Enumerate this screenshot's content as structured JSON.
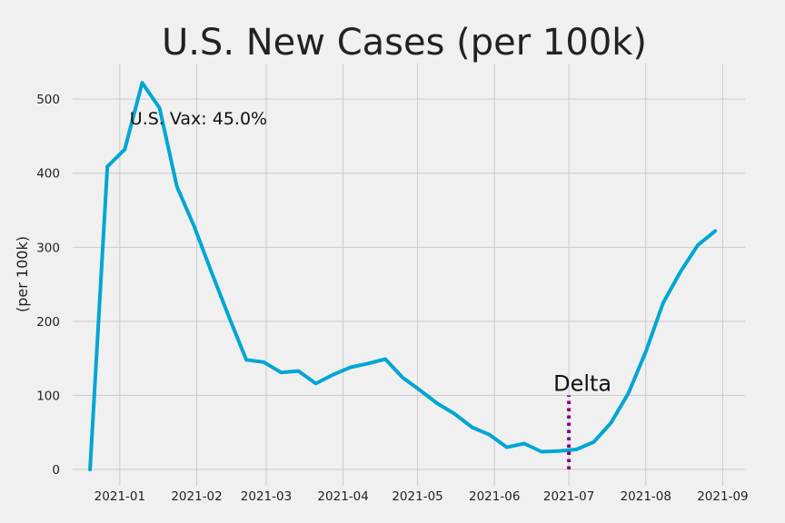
{
  "chart_data": {
    "type": "line",
    "title": "U.S. New Cases (per 100k)",
    "xlabel": "",
    "ylabel": "(per 100k)",
    "grid": true,
    "x_range": [
      "2020-12-13",
      "2021-09-10"
    ],
    "ylim": [
      -22,
      548
    ],
    "x_ticks": [
      "2021-01",
      "2021-02",
      "2021-03",
      "2021-04",
      "2021-05",
      "2021-06",
      "2021-07",
      "2021-08",
      "2021-09"
    ],
    "y_ticks": [
      0,
      100,
      200,
      300,
      400,
      500
    ],
    "series": [
      {
        "color": "#00a6d3",
        "points": [
          [
            "2020-12-20",
            0
          ],
          [
            "2020-12-27",
            409
          ],
          [
            "2021-01-03",
            432
          ],
          [
            "2021-01-10",
            522
          ],
          [
            "2021-01-17",
            488
          ],
          [
            "2021-01-24",
            382
          ],
          [
            "2021-01-31",
            328
          ],
          [
            "2021-02-07",
            266
          ],
          [
            "2021-02-14",
            206
          ],
          [
            "2021-02-21",
            148
          ],
          [
            "2021-02-28",
            145
          ],
          [
            "2021-03-07",
            131
          ],
          [
            "2021-03-14",
            133
          ],
          [
            "2021-03-21",
            116
          ],
          [
            "2021-03-28",
            128
          ],
          [
            "2021-04-04",
            138
          ],
          [
            "2021-04-11",
            143
          ],
          [
            "2021-04-18",
            149
          ],
          [
            "2021-04-25",
            124
          ],
          [
            "2021-05-02",
            107
          ],
          [
            "2021-05-09",
            89
          ],
          [
            "2021-05-16",
            75
          ],
          [
            "2021-05-23",
            57
          ],
          [
            "2021-05-30",
            47
          ],
          [
            "2021-06-06",
            30
          ],
          [
            "2021-06-13",
            35
          ],
          [
            "2021-06-20",
            24
          ],
          [
            "2021-06-27",
            25
          ],
          [
            "2021-07-04",
            27
          ],
          [
            "2021-07-11",
            37
          ],
          [
            "2021-07-18",
            63
          ],
          [
            "2021-07-25",
            103
          ],
          [
            "2021-08-01",
            159
          ],
          [
            "2021-08-08",
            225
          ],
          [
            "2021-08-15",
            267
          ],
          [
            "2021-08-22",
            303
          ],
          [
            "2021-08-29",
            322
          ]
        ]
      }
    ],
    "annotations": [
      {
        "text": "U.S. Vax: 45.0%",
        "x": "2021-01-05",
        "y": 466
      }
    ],
    "vline": {
      "x": "2021-07-01",
      "ymin": 0,
      "ymax": 100,
      "color": "#800080",
      "label": "Delta"
    }
  }
}
